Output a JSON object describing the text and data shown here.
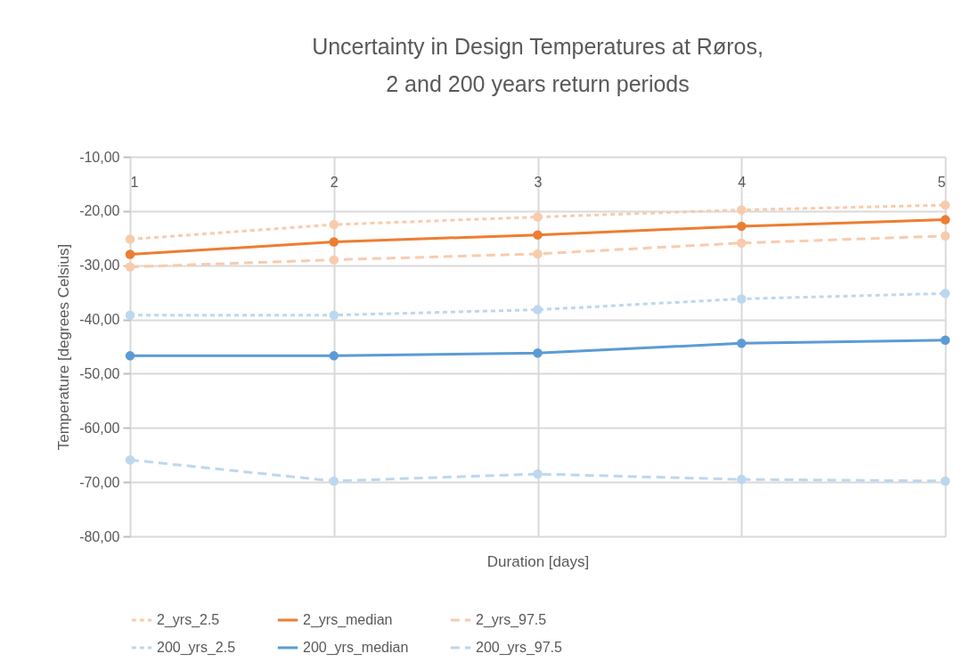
{
  "chart_data": {
    "type": "line",
    "title": [
      "Uncertainty in Design Temperatures at Røros,",
      "2 and 200 years return periods"
    ],
    "xlabel": "Duration [days]",
    "ylabel": "Temperature [degrees Celsius]",
    "x": [
      1,
      2,
      3,
      4,
      5
    ],
    "xlim": [
      1,
      5
    ],
    "xticks": [
      1,
      2,
      3,
      4,
      5
    ],
    "ylim": [
      -80,
      -10
    ],
    "yticks": [
      {
        "value": -80,
        "label": "-80,00"
      },
      {
        "value": -70,
        "label": "-70,00"
      },
      {
        "value": -60,
        "label": "-60,00"
      },
      {
        "value": -50,
        "label": "-50,00"
      },
      {
        "value": -40,
        "label": "-40,00"
      },
      {
        "value": -30,
        "label": "-30,00"
      },
      {
        "value": -20,
        "label": "-20,00"
      },
      {
        "value": -10,
        "label": "-10,00"
      }
    ],
    "grid": true,
    "legend": "bottom",
    "marker": "circle",
    "series": [
      {
        "name": "2_yrs_2.5",
        "color": "#f8cbad",
        "line_style": "dotted",
        "values": [
          -25.2,
          -22.5,
          -21.1,
          -19.8,
          -18.9
        ]
      },
      {
        "name": "2_yrs_median",
        "color": "#ed7d31",
        "line_style": "solid",
        "values": [
          -28.0,
          -25.7,
          -24.4,
          -22.8,
          -21.6
        ]
      },
      {
        "name": "2_yrs_97.5",
        "color": "#f8cbad",
        "line_style": "dashed",
        "values": [
          -30.3,
          -29.0,
          -27.9,
          -25.9,
          -24.6
        ]
      },
      {
        "name": "200_yrs_2.5",
        "color": "#bdd7ee",
        "line_style": "dotted",
        "values": [
          -39.2,
          -39.2,
          -38.2,
          -36.2,
          -35.2
        ]
      },
      {
        "name": "200_yrs_median",
        "color": "#5b9bd5",
        "line_style": "solid",
        "values": [
          -46.7,
          -46.7,
          -46.2,
          -44.4,
          -43.8
        ]
      },
      {
        "name": "200_yrs_97.5",
        "color": "#bdd7ee",
        "line_style": "dashed",
        "values": [
          -65.9,
          -69.8,
          -68.5,
          -69.5,
          -69.8
        ]
      }
    ]
  }
}
